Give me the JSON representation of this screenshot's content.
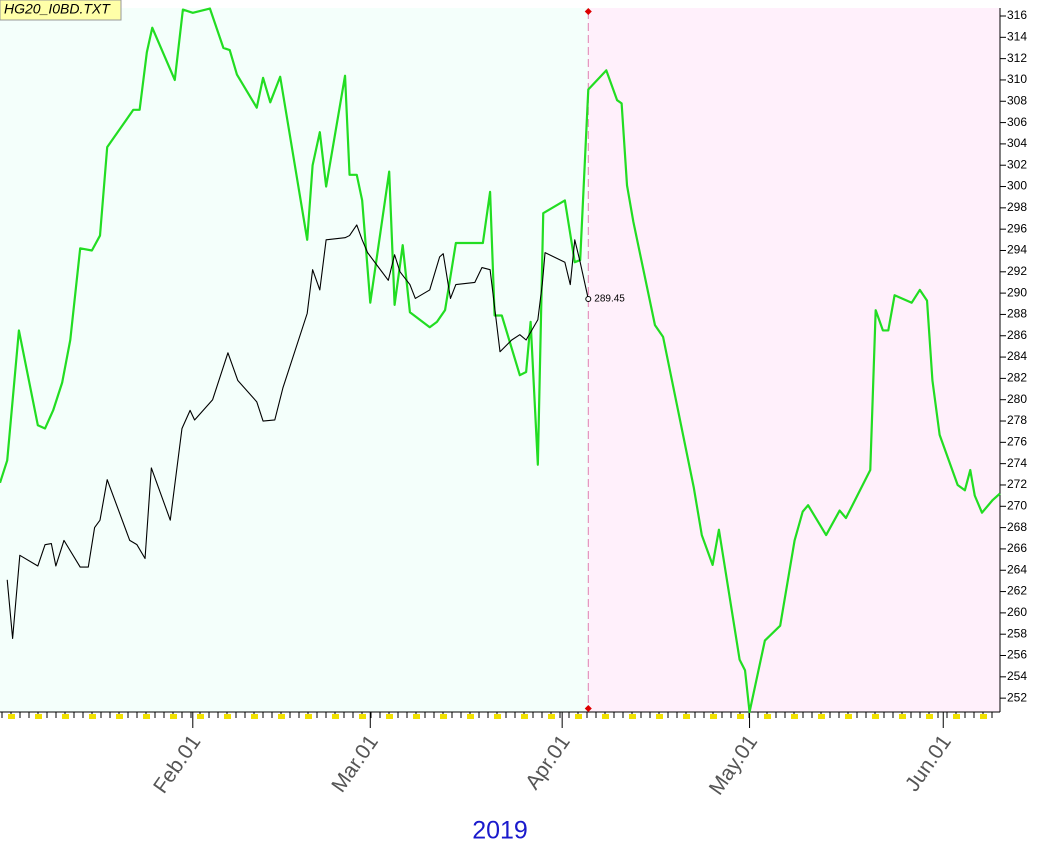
{
  "chart_data": {
    "type": "line",
    "title": "HG20_I0BD.TXT",
    "x_axis_label": "2019",
    "xlim": [
      0,
      111
    ],
    "xticks": [
      {
        "value": 21.4,
        "label": "Feb.01"
      },
      {
        "value": 41.1,
        "label": "Mar.01"
      },
      {
        "value": 62.4,
        "label": "Apr.01"
      },
      {
        "value": 83.2,
        "label": "May.01"
      },
      {
        "value": 104.7,
        "label": "Jun.01"
      }
    ],
    "ylim": [
      250.7,
      316.75
    ],
    "yticks": [
      252,
      254,
      256,
      258,
      260,
      262,
      264,
      266,
      268,
      270,
      272,
      274,
      276,
      278,
      280,
      282,
      284,
      286,
      288,
      290,
      292,
      294,
      296,
      298,
      300,
      302,
      304,
      306,
      308,
      310,
      312,
      314,
      316
    ],
    "series": [
      {
        "color": "#22dd22",
        "x": [
          0,
          0.8,
          2.1,
          4.2,
          5.0,
          5.9,
          6.9,
          7.8,
          8.9,
          10.2,
          11.1,
          11.9,
          14.8,
          15.5,
          16.3,
          16.9,
          19.4,
          20.3,
          21.4,
          23.3,
          24.8,
          25.5,
          26.3,
          28.5,
          29.2,
          30.0,
          31.1,
          34.1,
          34.7,
          35.5,
          36.2,
          38.3,
          38.8,
          39.6,
          40.2,
          41.1,
          43.2,
          43.8,
          44.7,
          45.5,
          47.7,
          48.5,
          49.4,
          50.6,
          53.6,
          54.4,
          54.9,
          55.7,
          57.7,
          58.4,
          58.9,
          59.7,
          60.3,
          62.7,
          63.8,
          64.4,
          65.3,
          67.3,
          68.5,
          69.0,
          69.6,
          70.3,
          72.7,
          73.6,
          77.0,
          77.9,
          79.1,
          79.8,
          82.1,
          82.7,
          83.2,
          84.9,
          86.6,
          88.2,
          89.1,
          89.7,
          91.7,
          93.2,
          93.9,
          96.6,
          97.2,
          98.0,
          98.6,
          99.3,
          101.2,
          102.1,
          102.9,
          103.5,
          104.3,
          106.3,
          107.1,
          107.7,
          108.2,
          109.0,
          110.2,
          111.0
        ],
        "values": [
          272.2,
          274.3,
          286.5,
          277.6,
          277.3,
          279.0,
          281.6,
          285.6,
          294.2,
          294.0,
          295.4,
          303.7,
          307.2,
          307.2,
          312.6,
          314.9,
          310.0,
          316.6,
          316.3,
          316.7,
          313.0,
          312.8,
          310.5,
          307.4,
          310.2,
          307.9,
          310.3,
          295.0,
          302.0,
          305.1,
          300.0,
          310.4,
          301.1,
          301.1,
          298.7,
          289.1,
          301.4,
          288.9,
          294.5,
          288.2,
          286.8,
          287.3,
          288.4,
          294.7,
          294.7,
          299.5,
          287.9,
          287.9,
          282.3,
          282.6,
          287.3,
          273.9,
          297.5,
          298.7,
          292.9,
          293.1,
          309.1,
          310.9,
          308.1,
          307.8,
          300.1,
          296.7,
          287.0,
          285.9,
          271.8,
          267.3,
          264.5,
          267.8,
          255.6,
          254.6,
          250.7,
          257.4,
          258.8,
          266.8,
          269.5,
          270.1,
          267.3,
          269.6,
          268.9,
          273.4,
          288.4,
          286.5,
          286.5,
          289.8,
          289.1,
          290.3,
          289.3,
          281.8,
          276.7,
          272.0,
          271.5,
          273.4,
          271.0,
          269.4,
          270.6,
          271.2
        ]
      },
      {
        "color": "#000000",
        "x": [
          0.8,
          1.4,
          2.2,
          4.2,
          5.0,
          5.7,
          6.2,
          7.1,
          8.9,
          9.8,
          10.5,
          11.1,
          11.9,
          14.4,
          15.2,
          16.1,
          16.8,
          18.9,
          20.2,
          21.1,
          21.6,
          23.6,
          25.3,
          26.4,
          28.5,
          29.2,
          30.5,
          31.4,
          34.1,
          34.7,
          35.5,
          36.2,
          38.3,
          38.8,
          39.6,
          40.2,
          40.8,
          43.1,
          43.8,
          44.4,
          45.5,
          46.1,
          47.7,
          48.8,
          49.2,
          50.0,
          50.6,
          52.7,
          53.5,
          54.4,
          55.5,
          56.8,
          57.7,
          58.4,
          59.7,
          60.2,
          60.5,
          62.7,
          63.3,
          63.8,
          64.4,
          65.3
        ],
        "values": [
          263.1,
          257.6,
          265.4,
          264.4,
          266.4,
          266.5,
          264.4,
          266.8,
          264.3,
          264.3,
          268.0,
          268.7,
          272.5,
          266.8,
          266.4,
          265.1,
          273.6,
          268.7,
          277.3,
          279.0,
          278.1,
          280.0,
          284.4,
          281.8,
          279.8,
          278.0,
          278.1,
          281.1,
          288.1,
          292.2,
          290.3,
          295.0,
          295.2,
          295.4,
          296.4,
          295.0,
          293.8,
          291.2,
          293.6,
          292.0,
          290.8,
          289.5,
          290.3,
          293.4,
          293.7,
          289.5,
          290.8,
          291.0,
          292.4,
          292.2,
          284.5,
          285.6,
          286.1,
          285.6,
          287.5,
          290.9,
          293.8,
          292.9,
          290.8,
          295.0,
          292.9,
          289.45
        ]
      }
    ]
  }
}
